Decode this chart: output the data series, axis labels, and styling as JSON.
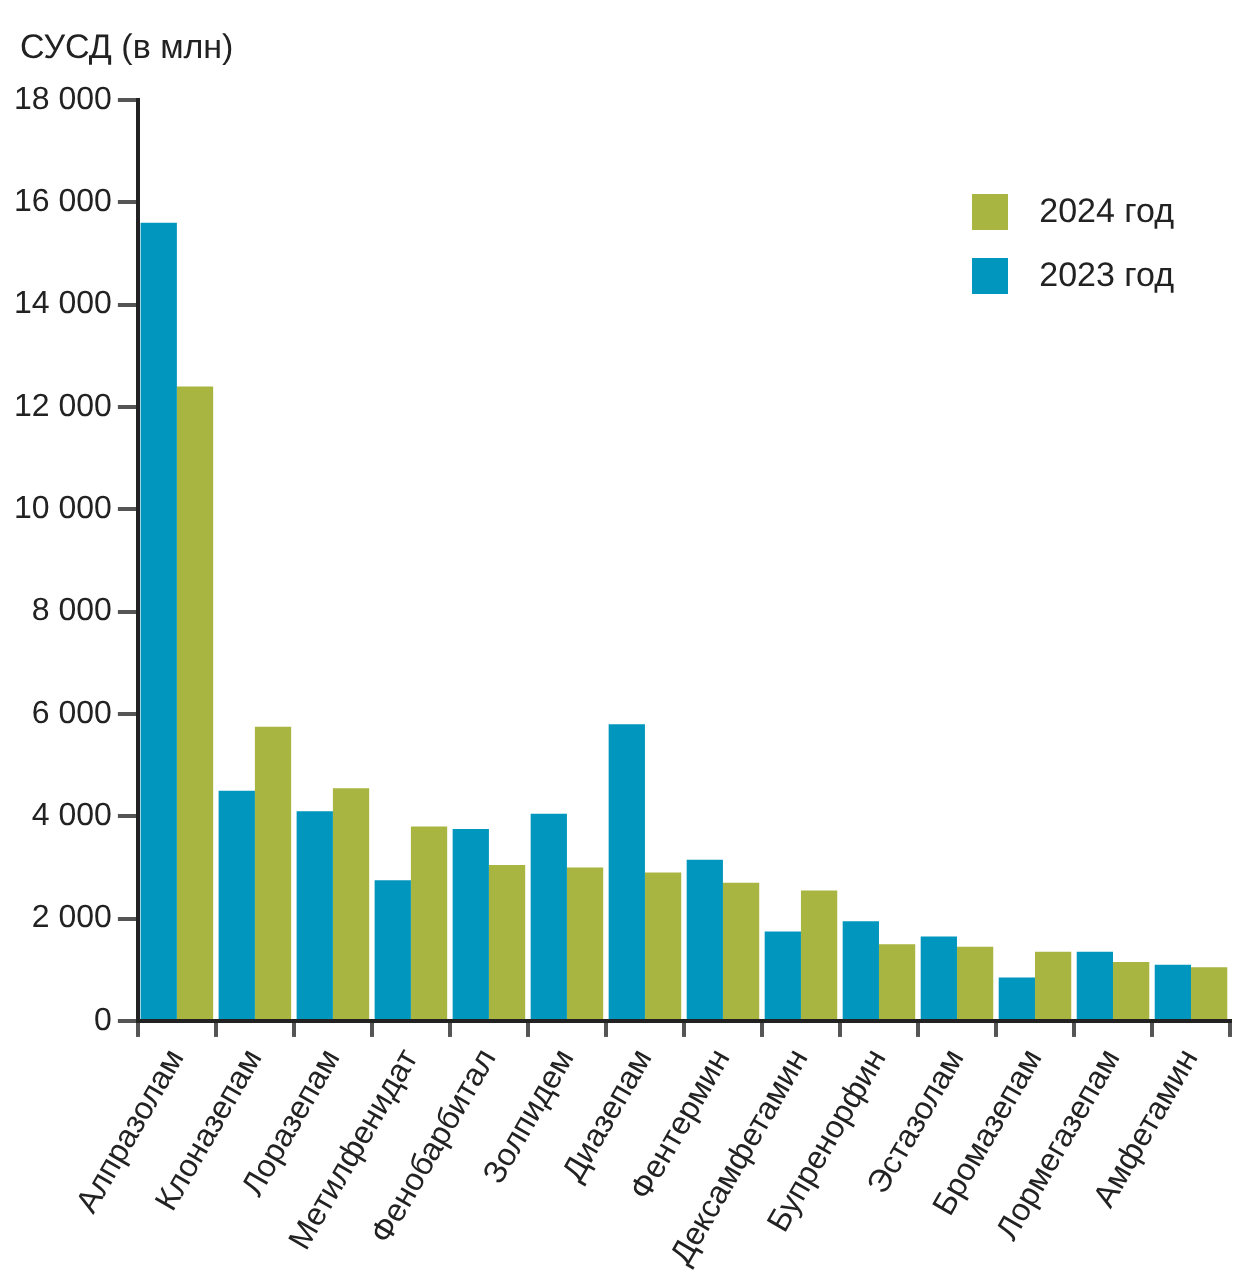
{
  "chart_data": {
    "type": "bar",
    "ylabel": "СУСД (в млн)",
    "categories": [
      "Алпразолам",
      "Клоназепам",
      "Лоразепам",
      "Метилфенидат",
      "Фенобарбитал",
      "Золпидем",
      "Диазепам",
      "Фентермин",
      "Дексамфетамин",
      "Бупренорфин",
      "Эстазолам",
      "Бромазепам",
      "Лормегазепам",
      "Амфетамин"
    ],
    "series": [
      {
        "name": "2023 год",
        "color": "#0096bd",
        "values": [
          15600,
          4500,
          4100,
          2750,
          3750,
          4050,
          5800,
          3150,
          1750,
          1950,
          1650,
          850,
          1350,
          1100
        ]
      },
      {
        "name": "2024 год",
        "color": "#a8b540",
        "values": [
          12400,
          5750,
          4550,
          3800,
          3050,
          3000,
          2900,
          2700,
          2550,
          1500,
          1450,
          1350,
          1150,
          1050
        ]
      }
    ],
    "ylim": [
      0,
      18000
    ],
    "yticks": [
      0,
      {
        "value": 2000,
        "label": "2 000"
      },
      {
        "value": 4000,
        "label": "4 000"
      },
      {
        "value": 6000,
        "label": "6 000"
      },
      {
        "value": 8000,
        "label": "8 000"
      },
      {
        "value": 10000,
        "label": "10 000"
      },
      {
        "value": 12000,
        "label": "12 000"
      },
      {
        "value": 14000,
        "label": "14 000"
      },
      {
        "value": 16000,
        "label": "16 000"
      },
      {
        "value": 18000,
        "label": "18 000"
      }
    ],
    "grid": false,
    "legend": "top right"
  }
}
